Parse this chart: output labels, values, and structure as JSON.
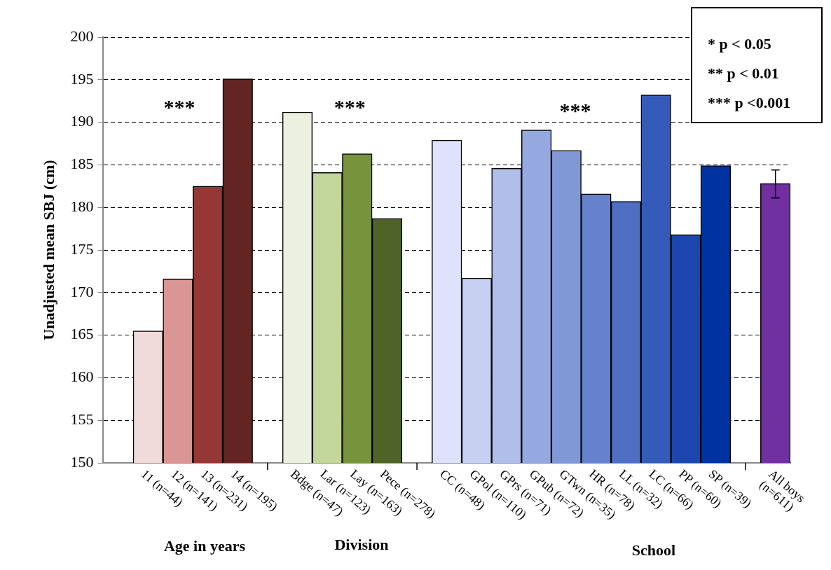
{
  "chart_data": {
    "type": "bar",
    "ylabel": "Unadjusted mean SBJ (cm)",
    "categories": [
      null,
      "11 (n=44)",
      "12 (n=141)",
      "13 (n=231)",
      "14 (n=195)",
      null,
      "Bdge (n=47)",
      "Lar (n=123)",
      "Lay (n=163)",
      "Pece (n=278)",
      null,
      "CC (n=48)",
      "GPol (n=110)",
      "GPrs (n=71)",
      "GPub (n=72)",
      "GTwn (n=35)",
      "HR (n=78)",
      "LL (n=32)",
      "LC (n=66)",
      "PP (n=60)",
      "SP (n=39)",
      null,
      "All boys (n=611)"
    ],
    "values": [
      null,
      165.5,
      171.6,
      182.5,
      195.1,
      null,
      191.2,
      184.1,
      186.3,
      178.7,
      null,
      187.9,
      171.7,
      184.6,
      189.1,
      186.7,
      181.6,
      180.7,
      193.2,
      176.8,
      184.9,
      null,
      182.8
    ],
    "colors": [
      "#ffffff",
      "#f0dada",
      "#da9695",
      "#953735",
      "#632523",
      "#ffffff",
      "#ebf1de",
      "#c3d69b",
      "#77933c",
      "#4f6228",
      "#ffffff",
      "#dee3fb",
      "#c6d0f2",
      "#b0bfe9",
      "#95a8e0",
      "#8098d6",
      "#6782cc",
      "#4f6fc3",
      "#355bb8",
      "#1c46ad",
      "#0033a2",
      "#ffffff",
      "#7030a0"
    ],
    "errors": [
      null,
      null,
      null,
      null,
      null,
      null,
      null,
      null,
      null,
      null,
      null,
      null,
      null,
      null,
      null,
      null,
      null,
      null,
      null,
      null,
      null,
      null,
      [
        181.1,
        184.4
      ]
    ],
    "ylim": [
      150,
      200
    ],
    "yticks": [
      150,
      155,
      160,
      165,
      170,
      175,
      180,
      185,
      190,
      195,
      200
    ],
    "grid": "y",
    "annotations": [
      "***",
      "***",
      "***",
      "Age in years",
      "Division",
      "School",
      "* p < 0.05",
      "** p < 0.01",
      "*** p <0.001"
    ]
  }
}
